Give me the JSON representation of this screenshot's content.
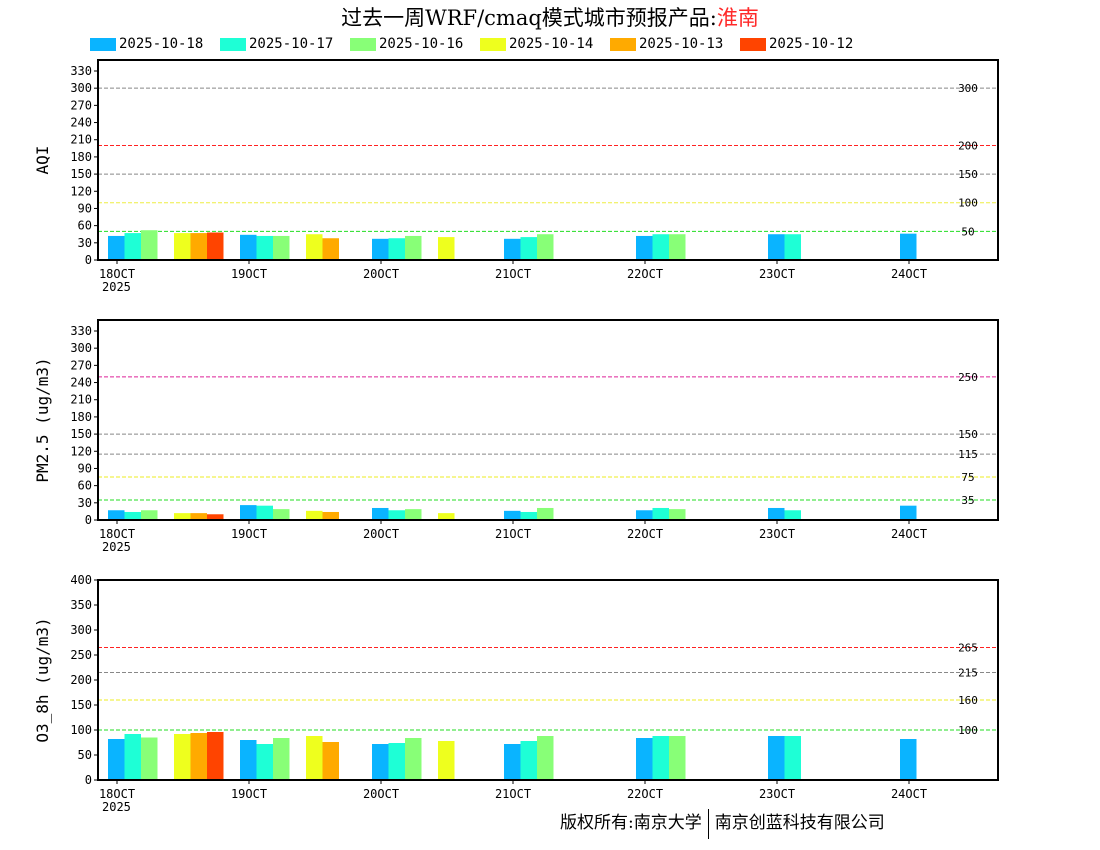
{
  "title": {
    "text": "过去一周WRF/cmaq模式城市预报产品:",
    "city": "淮南"
  },
  "footer": {
    "left": "版权所有:南京大学",
    "right": "南京创蓝科技有限公司"
  },
  "legend": [
    {
      "label": "2025-10-18",
      "color": "#0ab4ff"
    },
    {
      "label": "2025-10-17",
      "color": "#1effd6"
    },
    {
      "label": "2025-10-16",
      "color": "#88ff77"
    },
    {
      "label": "2025-10-14",
      "color": "#eeff1e"
    },
    {
      "label": "2025-10-13",
      "color": "#ffaa00"
    },
    {
      "label": "2025-10-12",
      "color": "#ff4400"
    }
  ],
  "chart_data": [
    {
      "type": "bar",
      "ylabel": "AQI",
      "ylim": [
        0,
        330
      ],
      "yticks": [
        0,
        30,
        60,
        90,
        120,
        150,
        180,
        210,
        240,
        270,
        300,
        330
      ],
      "categories": [
        "18OCT",
        "19OCT",
        "20OCT",
        "21OCT",
        "22OCT",
        "23OCT",
        "24OCT"
      ],
      "year_label": "2025",
      "ref_lines": [
        {
          "value": 300,
          "label": "300",
          "color": "#888888"
        },
        {
          "value": 200,
          "label": "200",
          "color": "#ff2222"
        },
        {
          "value": 150,
          "label": "150",
          "color": "#888888"
        },
        {
          "value": 100,
          "label": "100",
          "color": "#eeee44"
        },
        {
          "value": 50,
          "label": "50",
          "color": "#22dd22"
        }
      ],
      "series": [
        {
          "name": "2025-10-18",
          "slot": 0,
          "values": [
            42,
            44,
            37,
            37,
            42,
            45,
            46
          ]
        },
        {
          "name": "2025-10-17",
          "slot": 1,
          "values": [
            47,
            42,
            38,
            40,
            45,
            45,
            null
          ]
        },
        {
          "name": "2025-10-16",
          "slot": 2,
          "values": [
            52,
            42,
            42,
            45,
            45,
            null,
            null
          ]
        },
        {
          "name": "2025-10-14",
          "slot": 4,
          "values": [
            47,
            45,
            40,
            null,
            null,
            null,
            null
          ]
        },
        {
          "name": "2025-10-13",
          "slot": 5,
          "values": [
            47,
            38,
            null,
            null,
            null,
            null,
            null
          ]
        },
        {
          "name": "2025-10-12",
          "slot": 6,
          "values": [
            48,
            null,
            null,
            null,
            null,
            null,
            null
          ]
        }
      ]
    },
    {
      "type": "bar",
      "ylabel": "PM2.5 (ug/m3)",
      "ylim": [
        0,
        330
      ],
      "yticks": [
        0,
        30,
        60,
        90,
        120,
        150,
        180,
        210,
        240,
        270,
        300,
        330
      ],
      "categories": [
        "18OCT",
        "19OCT",
        "20OCT",
        "21OCT",
        "22OCT",
        "23OCT",
        "24OCT"
      ],
      "year_label": "2025",
      "ref_lines": [
        {
          "value": 250,
          "label": "250",
          "color": "#dd2299"
        },
        {
          "value": 150,
          "label": "150",
          "color": "#888888"
        },
        {
          "value": 115,
          "label": "115",
          "color": "#888888"
        },
        {
          "value": 75,
          "label": "75",
          "color": "#eeee22"
        },
        {
          "value": 35,
          "label": "35",
          "color": "#22dd22"
        }
      ],
      "series": [
        {
          "name": "2025-10-18",
          "slot": 0,
          "values": [
            17,
            26,
            21,
            16,
            17,
            21,
            25
          ]
        },
        {
          "name": "2025-10-17",
          "slot": 1,
          "values": [
            14,
            25,
            17,
            14,
            21,
            17,
            null
          ]
        },
        {
          "name": "2025-10-16",
          "slot": 2,
          "values": [
            17,
            19,
            19,
            21,
            19,
            null,
            null
          ]
        },
        {
          "name": "2025-10-14",
          "slot": 4,
          "values": [
            12,
            16,
            12,
            null,
            null,
            null,
            null
          ]
        },
        {
          "name": "2025-10-13",
          "slot": 5,
          "values": [
            12,
            14,
            null,
            null,
            null,
            null,
            null
          ]
        },
        {
          "name": "2025-10-12",
          "slot": 6,
          "values": [
            10,
            null,
            null,
            null,
            null,
            null,
            null
          ]
        }
      ]
    },
    {
      "type": "bar",
      "ylabel": "O3_8h (ug/m3)",
      "ylim": [
        0,
        400
      ],
      "yticks": [
        0,
        50,
        100,
        150,
        200,
        250,
        300,
        350,
        400
      ],
      "categories": [
        "18OCT",
        "19OCT",
        "20OCT",
        "21OCT",
        "22OCT",
        "23OCT",
        "24OCT"
      ],
      "year_label": "2025",
      "ref_lines": [
        {
          "value": 265,
          "label": "265",
          "color": "#ff2222"
        },
        {
          "value": 215,
          "label": "215",
          "color": "#888888"
        },
        {
          "value": 160,
          "label": "160",
          "color": "#eeee22"
        },
        {
          "value": 100,
          "label": "100",
          "color": "#22dd22"
        }
      ],
      "series": [
        {
          "name": "2025-10-18",
          "slot": 0,
          "values": [
            82,
            80,
            72,
            72,
            84,
            88,
            82
          ]
        },
        {
          "name": "2025-10-17",
          "slot": 1,
          "values": [
            92,
            72,
            74,
            78,
            88,
            88,
            null
          ]
        },
        {
          "name": "2025-10-16",
          "slot": 2,
          "values": [
            85,
            84,
            84,
            88,
            88,
            null,
            null
          ]
        },
        {
          "name": "2025-10-14",
          "slot": 4,
          "values": [
            92,
            88,
            78,
            null,
            null,
            null,
            null
          ]
        },
        {
          "name": "2025-10-13",
          "slot": 5,
          "values": [
            94,
            76,
            null,
            null,
            null,
            null,
            null
          ]
        },
        {
          "name": "2025-10-12",
          "slot": 6,
          "values": [
            96,
            null,
            null,
            null,
            null,
            null,
            null
          ]
        }
      ]
    }
  ]
}
